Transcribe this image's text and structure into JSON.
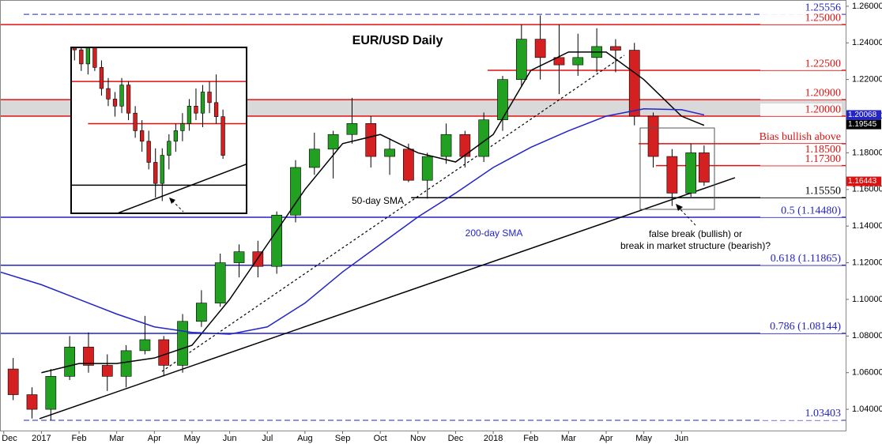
{
  "chart_data": [
    {
      "type": "candlestick",
      "title": "EUR/USD Daily",
      "xlim": [
        -1.1,
        21.36
      ],
      "ylim": [
        1.0284,
        1.2634
      ],
      "xticks": [
        {
          "value": -1,
          "label": "Dec"
        },
        {
          "value": 0,
          "label": "2017"
        },
        {
          "value": 1,
          "label": "Feb"
        },
        {
          "value": 2,
          "label": "Mar"
        },
        {
          "value": 3,
          "label": "Apr"
        },
        {
          "value": 4,
          "label": "May"
        },
        {
          "value": 5,
          "label": "Jun"
        },
        {
          "value": 6,
          "label": "Jul"
        },
        {
          "value": 7,
          "label": "Aug"
        },
        {
          "value": 8,
          "label": "Sep"
        },
        {
          "value": 9,
          "label": "Oct"
        },
        {
          "value": 10,
          "label": "Nov"
        },
        {
          "value": 11,
          "label": "Dec"
        },
        {
          "value": 12,
          "label": "2018"
        },
        {
          "value": 13,
          "label": "Feb"
        },
        {
          "value": 14,
          "label": "Mar"
        },
        {
          "value": 15,
          "label": "Apr"
        },
        {
          "value": 16,
          "label": "May"
        },
        {
          "value": 17,
          "label": "Jun"
        }
      ],
      "yticks": [
        {
          "value": 1.04,
          "label": "1.04000"
        },
        {
          "value": 1.06,
          "label": "1.06000"
        },
        {
          "value": 1.08,
          "label": "1.08000"
        },
        {
          "value": 1.1,
          "label": "1.10000"
        },
        {
          "value": 1.12,
          "label": "1.12000"
        },
        {
          "value": 1.14,
          "label": "1.14000"
        },
        {
          "value": 1.16,
          "label": "1.16000"
        },
        {
          "value": 1.18,
          "label": "1.18000"
        },
        {
          "value": 1.2,
          "label": "1.20000"
        },
        {
          "value": 1.22,
          "label": "1.22000"
        },
        {
          "value": 1.24,
          "label": "1.24000"
        },
        {
          "value": 1.26,
          "label": "1.26000"
        }
      ],
      "up_color": "#22a022",
      "down_color": "#d42020",
      "candles": {
        "x": [
          -0.75,
          -0.25,
          0.25,
          0.75,
          1.25,
          1.75,
          2.25,
          2.75,
          3.25,
          3.75,
          4.25,
          4.75,
          5.25,
          5.75,
          6.25,
          6.75,
          7.25,
          7.75,
          8.25,
          8.75,
          9.25,
          9.75,
          10.25,
          10.75,
          11.25,
          11.75,
          12.25,
          12.75,
          13.25,
          13.75,
          14.25,
          14.75,
          15.25,
          15.75,
          16.25,
          16.75,
          17.25,
          17.6
        ],
        "open": [
          1.062,
          1.048,
          1.04,
          1.058,
          1.074,
          1.064,
          1.058,
          1.072,
          1.078,
          1.064,
          1.088,
          1.098,
          1.12,
          1.126,
          1.118,
          1.146,
          1.172,
          1.182,
          1.19,
          1.196,
          1.178,
          1.182,
          1.165,
          1.178,
          1.19,
          1.178,
          1.198,
          1.22,
          1.242,
          1.232,
          1.228,
          1.232,
          1.238,
          1.236,
          1.2,
          1.178,
          1.158,
          1.18
        ],
        "high": [
          1.068,
          1.052,
          1.062,
          1.08,
          1.082,
          1.07,
          1.075,
          1.091,
          1.08,
          1.092,
          1.105,
          1.125,
          1.13,
          1.132,
          1.148,
          1.176,
          1.191,
          1.192,
          1.21,
          1.2,
          1.188,
          1.185,
          1.18,
          1.196,
          1.192,
          1.202,
          1.222,
          1.25,
          1.255,
          1.25,
          1.245,
          1.248,
          1.242,
          1.24,
          1.202,
          1.182,
          1.185,
          1.184
        ],
        "low": [
          1.045,
          1.035,
          1.034,
          1.056,
          1.06,
          1.05,
          1.052,
          1.07,
          1.058,
          1.06,
          1.085,
          1.096,
          1.112,
          1.112,
          1.114,
          1.142,
          1.168,
          1.166,
          1.185,
          1.172,
          1.168,
          1.164,
          1.155,
          1.174,
          1.172,
          1.175,
          1.192,
          1.216,
          1.22,
          1.212,
          1.222,
          1.224,
          1.224,
          1.195,
          1.172,
          1.151,
          1.156,
          1.162
        ],
        "close": [
          1.048,
          1.04,
          1.058,
          1.074,
          1.064,
          1.058,
          1.072,
          1.078,
          1.064,
          1.088,
          1.098,
          1.12,
          1.126,
          1.118,
          1.146,
          1.172,
          1.182,
          1.19,
          1.196,
          1.178,
          1.182,
          1.165,
          1.178,
          1.19,
          1.178,
          1.198,
          1.22,
          1.242,
          1.232,
          1.228,
          1.232,
          1.238,
          1.236,
          1.2,
          1.178,
          1.158,
          1.18,
          1.164
        ]
      },
      "series": [
        {
          "name": "50-day SMA",
          "color": "#000000",
          "x": [
            0,
            1,
            2,
            3,
            4,
            5,
            6,
            7,
            8,
            9,
            10,
            11,
            12,
            13,
            14,
            15,
            16,
            17,
            17.6
          ],
          "values": [
            1.06,
            1.065,
            1.065,
            1.068,
            1.075,
            1.1,
            1.13,
            1.16,
            1.185,
            1.19,
            1.18,
            1.175,
            1.19,
            1.225,
            1.235,
            1.235,
            1.22,
            1.2,
            1.195
          ]
        },
        {
          "name": "200-day SMA",
          "color": "#2424c8",
          "x": [
            -1.1,
            0,
            1,
            2,
            3,
            4,
            5,
            6,
            7,
            8,
            9,
            10,
            11,
            12,
            13,
            14,
            15,
            16,
            17,
            17.6
          ],
          "values": [
            1.115,
            1.108,
            1.1,
            1.092,
            1.085,
            1.082,
            1.081,
            1.085,
            1.098,
            1.115,
            1.13,
            1.145,
            1.158,
            1.172,
            1.183,
            1.192,
            1.2,
            1.204,
            1.2035,
            1.2007
          ]
        }
      ],
      "shaded_range": [
        1.2,
        1.209
      ],
      "levels": [
        {
          "value": 1.25556,
          "label": "1.25556",
          "color": "#2424c8",
          "style": "dashed",
          "x_start": -0.47
        },
        {
          "value": 1.25,
          "label": "1.25000",
          "color": "#e01010",
          "style": "solid"
        },
        {
          "value": 1.225,
          "label": "1.22500",
          "color": "#e01010",
          "style": "solid",
          "x_start": 11.85
        },
        {
          "value": 1.209,
          "label": "1.20900",
          "color": "#e01010",
          "style": "solid"
        },
        {
          "value": 1.2,
          "label": "1.20000",
          "color": "#e01010",
          "style": "solid"
        },
        {
          "value": 1.185,
          "label": "1.18500",
          "note": "Bias bullish above",
          "color": "#e01010",
          "style": "solid",
          "x_start": 15.86
        },
        {
          "value": 1.173,
          "label": "1.17300",
          "color": "#e01010",
          "style": "solid",
          "x_start": 16.32
        },
        {
          "value": 1.1555,
          "label": "1.15550",
          "color": "#000000",
          "style": "solid",
          "x_start": 9.82
        },
        {
          "value": 1.1448,
          "label": "0.5 (1.14480)",
          "color": "#2424c8",
          "style": "solid"
        },
        {
          "value": 1.11865,
          "label": "0.618 (1.11865)",
          "color": "#2424c8",
          "style": "solid"
        },
        {
          "value": 1.08144,
          "label": "0.786 (1.08144)",
          "color": "#2424c8",
          "style": "solid"
        },
        {
          "value": 1.03403,
          "label": "1.03403",
          "color": "#2424c8",
          "style": "dashed",
          "x_start": -0.47
        }
      ],
      "trendlines": [
        {
          "x": [
            -0.05,
            18.42
          ],
          "values": [
            1.0349,
            1.1664
          ],
          "style": "solid"
        },
        {
          "x": [
            3.2,
            15.48
          ],
          "values": [
            1.0607,
            1.2332
          ],
          "style": "dotted"
        }
      ],
      "badges": [
        {
          "value": 1.20068,
          "color": "#2424c8"
        },
        {
          "value": 1.19545,
          "color": "#000000"
        },
        {
          "value": 1.16443,
          "color": "#e01010"
        }
      ],
      "annotations": [
        "false break (bullish) or",
        "break in market structure (bearish)?"
      ]
    },
    {
      "type": "candlestick",
      "xlim": [
        -0.5,
        25.5
      ],
      "ylim": [
        1.1475,
        1.1947
      ],
      "up_color": "#22a022",
      "down_color": "#d42020",
      "candles": {
        "x": [
          0,
          1,
          2,
          3,
          4,
          5,
          6,
          7,
          8,
          9,
          10,
          11,
          12,
          13,
          14,
          15,
          16,
          17,
          18,
          19,
          20,
          21,
          22
        ],
        "open": [
          1.196,
          1.194,
          1.19,
          1.195,
          1.189,
          1.183,
          1.18,
          1.178,
          1.184,
          1.176,
          1.171,
          1.168,
          1.162,
          1.156,
          1.164,
          1.168,
          1.171,
          1.173,
          1.178,
          1.176,
          1.182,
          1.179,
          1.175
        ],
        "high": [
          1.199,
          1.197,
          1.196,
          1.197,
          1.191,
          1.186,
          1.182,
          1.186,
          1.185,
          1.178,
          1.174,
          1.171,
          1.166,
          1.166,
          1.17,
          1.173,
          1.176,
          1.18,
          1.183,
          1.184,
          1.185,
          1.187,
          1.177
        ],
        "low": [
          1.191,
          1.188,
          1.187,
          1.188,
          1.181,
          1.178,
          1.175,
          1.176,
          1.174,
          1.169,
          1.165,
          1.16,
          1.152,
          1.151,
          1.16,
          1.165,
          1.168,
          1.171,
          1.174,
          1.172,
          1.176,
          1.173,
          1.163
        ],
        "close": [
          1.194,
          1.19,
          1.195,
          1.189,
          1.183,
          1.18,
          1.178,
          1.184,
          1.176,
          1.171,
          1.168,
          1.162,
          1.156,
          1.164,
          1.168,
          1.171,
          1.173,
          1.178,
          1.176,
          1.182,
          1.179,
          1.175,
          1.164
        ]
      },
      "levels": [
        {
          "value": 1.185,
          "color": "#e01010",
          "style": "solid"
        },
        {
          "value": 1.173,
          "color": "#e01010",
          "style": "solid",
          "x_start": 2
        },
        {
          "value": 1.1555,
          "color": "#000000",
          "style": "solid"
        }
      ],
      "trendlines": [
        {
          "x": [
            -0.5,
            25.5
          ],
          "values": [
            1.1425,
            1.1615
          ],
          "style": "solid"
        }
      ]
    }
  ]
}
